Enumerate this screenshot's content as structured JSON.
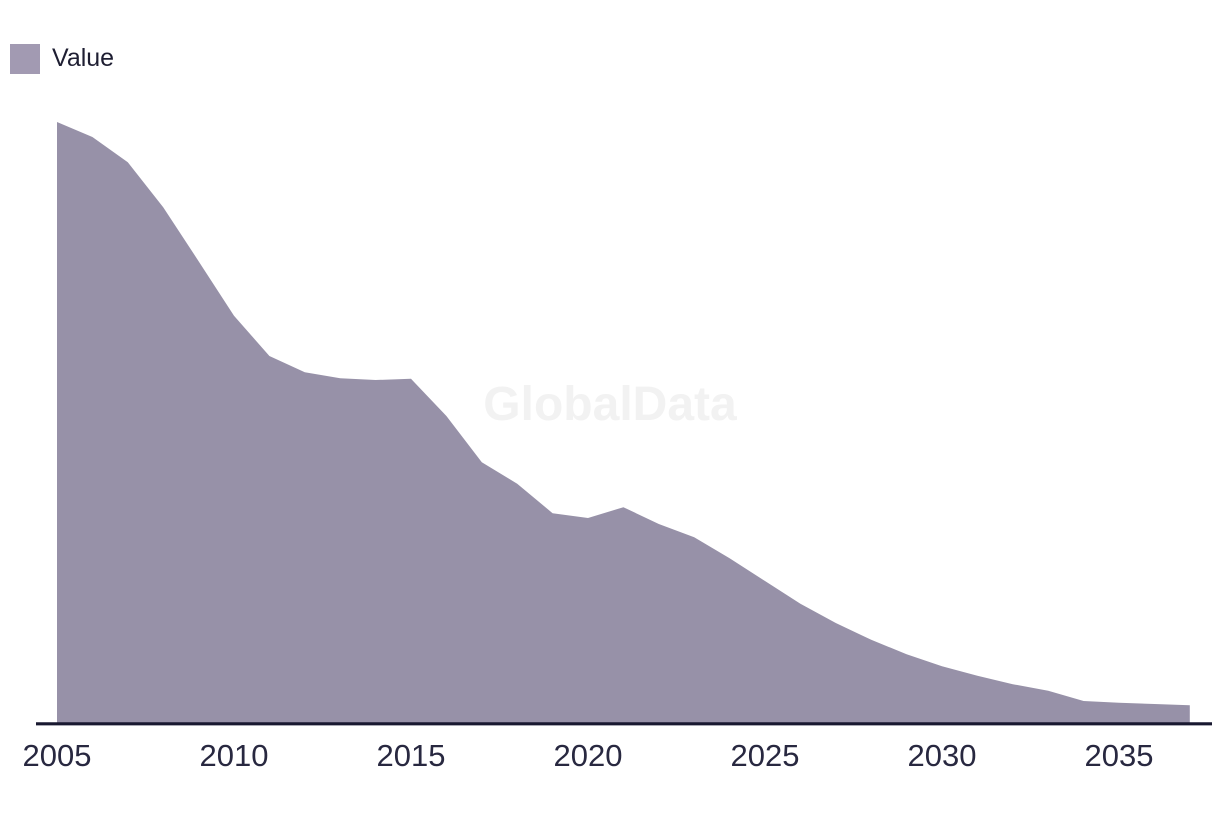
{
  "watermark": "GlobalData",
  "legend": {
    "label": "Value",
    "swatch_color": "#a29ab2"
  },
  "colors": {
    "background": "#ffffff",
    "area_fill": "#9791a8",
    "axis_line": "#191930",
    "tick_label_text": "#282840",
    "legend_text": "#1e1e32",
    "watermark_text": "#f2f2f2"
  },
  "x_axis": {
    "tick_labels": [
      "2005",
      "2010",
      "2015",
      "2020",
      "2025",
      "2030",
      "2035"
    ],
    "tick_years": [
      2005,
      2010,
      2015,
      2020,
      2025,
      2030,
      2035
    ]
  },
  "chart_data": {
    "type": "area",
    "title": "",
    "xlabel": "",
    "ylabel": "",
    "x_range": [
      2005,
      2037
    ],
    "ylim": [
      0,
      100
    ],
    "grid": false,
    "legend_position": "top-left",
    "value_scale_note": "no y-axis shown; values estimated from pixels, normalized so 2005 = 100",
    "series": [
      {
        "name": "Value",
        "x": [
          2005,
          2006,
          2007,
          2008,
          2009,
          2010,
          2011,
          2012,
          2013,
          2014,
          2015,
          2016,
          2017,
          2018,
          2019,
          2020,
          2021,
          2022,
          2023,
          2024,
          2025,
          2026,
          2027,
          2028,
          2029,
          2030,
          2031,
          2032,
          2033,
          2034,
          2035,
          2036,
          2037
        ],
        "values": [
          100,
          97.5,
          93.3,
          85.8,
          76.8,
          67.7,
          61.0,
          58.3,
          57.3,
          57.0,
          57.2,
          51.0,
          43.3,
          39.7,
          34.8,
          34.0,
          35.8,
          33.0,
          30.8,
          27.3,
          23.5,
          19.7,
          16.5,
          13.7,
          11.3,
          9.3,
          7.7,
          6.3,
          5.2,
          3.5,
          3.2,
          3.0,
          2.8
        ]
      }
    ]
  }
}
